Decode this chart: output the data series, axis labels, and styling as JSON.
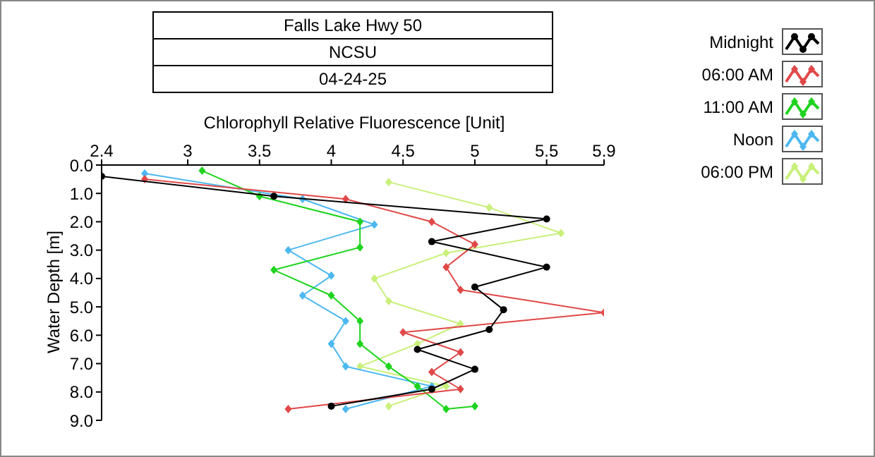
{
  "chart_data": {
    "type": "line",
    "title": "Falls Lake Hwy 50",
    "subtitle": "NCSU",
    "annotations": [
      "04-24-25"
    ],
    "xlabel": "Chlorophyll Relative Fluorescence [Unit]",
    "ylabel": "Water Depth [m]",
    "xlim": [
      2.4,
      5.9
    ],
    "xticks": [
      2.4,
      3,
      3.5,
      4,
      4.5,
      5,
      5.5,
      5.9
    ],
    "ylim": [
      9,
      0
    ],
    "yticks": [
      {
        "value": 0,
        "label": "0.0"
      },
      {
        "value": 1,
        "label": "1.0"
      },
      {
        "value": 2,
        "label": "2.0"
      },
      {
        "value": 3,
        "label": "3.0"
      },
      {
        "value": 4,
        "label": "4.0"
      },
      {
        "value": 5,
        "label": "5.0"
      },
      {
        "value": 6,
        "label": "6.0"
      },
      {
        "value": 7,
        "label": "7.0"
      },
      {
        "value": 8,
        "label": "8.0"
      },
      {
        "value": 9,
        "label": "9.0"
      }
    ],
    "grid": false,
    "legend": "top right",
    "series": [
      {
        "name": "Midnight",
        "color": "#000000",
        "marker": "circle",
        "x": [
          2.4,
          3.6,
          5.5,
          4.7,
          5.5,
          5.0,
          5.2,
          5.1,
          4.6,
          5.0,
          4.7,
          4.0
        ],
        "values": [
          0.4,
          1.1,
          1.9,
          2.7,
          3.6,
          4.3,
          5.1,
          5.8,
          6.5,
          7.2,
          7.9,
          8.5
        ]
      },
      {
        "name": "06:00 AM",
        "color": "#e04848",
        "marker": "diamond",
        "x": [
          2.7,
          4.1,
          4.7,
          5.0,
          4.8,
          4.9,
          5.9,
          4.5,
          4.9,
          4.7,
          4.9,
          3.7
        ],
        "values": [
          0.5,
          1.2,
          2.0,
          2.8,
          3.6,
          4.4,
          5.2,
          5.9,
          6.6,
          7.3,
          7.9,
          8.6
        ]
      },
      {
        "name": "11:00 AM",
        "color": "#1ed41e",
        "marker": "diamond",
        "x": [
          3.1,
          3.5,
          4.2,
          4.2,
          3.6,
          4.0,
          4.2,
          4.2,
          4.4,
          4.6,
          4.8,
          5.0
        ],
        "values": [
          0.2,
          1.1,
          2.0,
          2.9,
          3.7,
          4.6,
          5.5,
          6.3,
          7.1,
          7.8,
          8.6,
          8.5
        ]
      },
      {
        "name": "Noon",
        "color": "#4db8f0",
        "marker": "diamond",
        "x": [
          2.7,
          3.8,
          4.3,
          3.7,
          4.0,
          3.8,
          4.1,
          4.0,
          4.1,
          4.7,
          4.1
        ],
        "values": [
          0.3,
          1.2,
          2.1,
          3.0,
          3.9,
          4.6,
          5.5,
          6.3,
          7.1,
          7.8,
          8.6
        ]
      },
      {
        "name": "06:00 PM",
        "color": "#c8f07a",
        "marker": "diamond",
        "x": [
          4.4,
          5.1,
          5.6,
          4.8,
          4.3,
          4.4,
          4.9,
          4.6,
          4.2,
          4.8,
          4.4
        ],
        "values": [
          0.6,
          1.5,
          2.4,
          3.1,
          4.0,
          4.8,
          5.6,
          6.3,
          7.1,
          7.8,
          8.5
        ]
      }
    ]
  }
}
